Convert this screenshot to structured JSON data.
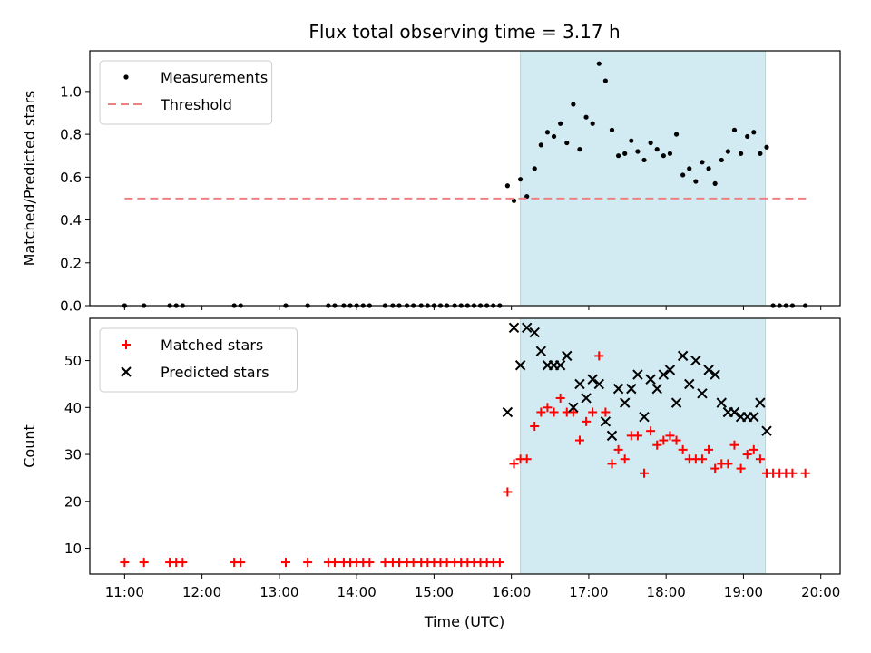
{
  "chart_data": {
    "title": "Flux total observing time = 3.17 h",
    "type": "scatter",
    "shaded_interval": {
      "x": [
        "16:07",
        "19:17"
      ],
      "color": "#add8e6"
    },
    "xlabel": "Time (UTC)",
    "xlim": [
      "10:33",
      "20:15"
    ],
    "xticks": [
      "11:00",
      "12:00",
      "13:00",
      "14:00",
      "15:00",
      "16:00",
      "17:00",
      "18:00",
      "19:00",
      "20:00"
    ],
    "panels": [
      {
        "ylabel": "Matched/Predicted stars",
        "ylim": [
          0,
          1.19
        ],
        "yticks": [
          "0.0",
          "0.2",
          "0.4",
          "0.6",
          "0.8",
          "1.0"
        ],
        "legend_position": "upper-left",
        "series": [
          {
            "name": "Measurements",
            "type": "scatter",
            "marker": "dot",
            "color": "#000000",
            "points": [
              [
                "11:00",
                0
              ],
              [
                "11:15",
                0
              ],
              [
                "11:35",
                0
              ],
              [
                "11:40",
                0
              ],
              [
                "11:45",
                0
              ],
              [
                "12:25",
                0
              ],
              [
                "12:30",
                0
              ],
              [
                "13:05",
                0
              ],
              [
                "13:22",
                0
              ],
              [
                "13:38",
                0
              ],
              [
                "13:43",
                0
              ],
              [
                "13:50",
                0
              ],
              [
                "13:55",
                0
              ],
              [
                "14:00",
                0
              ],
              [
                "14:05",
                0
              ],
              [
                "14:10",
                0
              ],
              [
                "14:22",
                0
              ],
              [
                "14:28",
                0
              ],
              [
                "14:33",
                0
              ],
              [
                "14:39",
                0
              ],
              [
                "14:44",
                0
              ],
              [
                "14:50",
                0
              ],
              [
                "14:55",
                0
              ],
              [
                "15:00",
                0
              ],
              [
                "15:05",
                0
              ],
              [
                "15:10",
                0
              ],
              [
                "15:16",
                0
              ],
              [
                "15:21",
                0
              ],
              [
                "15:26",
                0
              ],
              [
                "15:31",
                0
              ],
              [
                "15:36",
                0
              ],
              [
                "15:41",
                0
              ],
              [
                "15:46",
                0
              ],
              [
                "15:51",
                0
              ],
              [
                "15:57",
                0.56
              ],
              [
                "16:02",
                0.49
              ],
              [
                "16:07",
                0.59
              ],
              [
                "16:12",
                0.51
              ],
              [
                "16:18",
                0.64
              ],
              [
                "16:23",
                0.75
              ],
              [
                "16:28",
                0.81
              ],
              [
                "16:33",
                0.79
              ],
              [
                "16:38",
                0.85
              ],
              [
                "16:43",
                0.76
              ],
              [
                "16:48",
                0.94
              ],
              [
                "16:53",
                0.73
              ],
              [
                "16:58",
                0.88
              ],
              [
                "17:03",
                0.85
              ],
              [
                "17:08",
                1.13
              ],
              [
                "17:13",
                1.05
              ],
              [
                "17:18",
                0.82
              ],
              [
                "17:23",
                0.7
              ],
              [
                "17:28",
                0.71
              ],
              [
                "17:33",
                0.77
              ],
              [
                "17:38",
                0.72
              ],
              [
                "17:43",
                0.68
              ],
              [
                "17:48",
                0.76
              ],
              [
                "17:53",
                0.73
              ],
              [
                "17:58",
                0.7
              ],
              [
                "18:03",
                0.71
              ],
              [
                "18:08",
                0.8
              ],
              [
                "18:13",
                0.61
              ],
              [
                "18:18",
                0.64
              ],
              [
                "18:23",
                0.58
              ],
              [
                "18:28",
                0.67
              ],
              [
                "18:33",
                0.64
              ],
              [
                "18:38",
                0.57
              ],
              [
                "18:43",
                0.68
              ],
              [
                "18:48",
                0.72
              ],
              [
                "18:53",
                0.82
              ],
              [
                "18:58",
                0.71
              ],
              [
                "19:03",
                0.79
              ],
              [
                "19:08",
                0.81
              ],
              [
                "19:13",
                0.71
              ],
              [
                "19:18",
                0.74
              ],
              [
                "19:23",
                0
              ],
              [
                "19:28",
                0
              ],
              [
                "19:33",
                0
              ],
              [
                "19:38",
                0
              ],
              [
                "19:48",
                0
              ]
            ]
          },
          {
            "name": "Threshold",
            "type": "dashed-line",
            "color": "#f08080",
            "points": [
              [
                "11:00",
                0.5
              ],
              [
                "19:50",
                0.5
              ]
            ]
          }
        ]
      },
      {
        "ylabel": "Count",
        "ylim": [
          4.5,
          59
        ],
        "yticks": [
          "10",
          "20",
          "30",
          "40",
          "50"
        ],
        "legend_position": "upper-left",
        "series": [
          {
            "name": "Matched stars",
            "type": "scatter",
            "marker": "plus",
            "color": "#ff0000",
            "points": [
              [
                "11:00",
                7
              ],
              [
                "11:15",
                7
              ],
              [
                "11:35",
                7
              ],
              [
                "11:40",
                7
              ],
              [
                "11:45",
                7
              ],
              [
                "12:25",
                7
              ],
              [
                "12:30",
                7
              ],
              [
                "13:05",
                7
              ],
              [
                "13:22",
                7
              ],
              [
                "13:38",
                7
              ],
              [
                "13:43",
                7
              ],
              [
                "13:50",
                7
              ],
              [
                "13:55",
                7
              ],
              [
                "14:00",
                7
              ],
              [
                "14:05",
                7
              ],
              [
                "14:10",
                7
              ],
              [
                "14:22",
                7
              ],
              [
                "14:28",
                7
              ],
              [
                "14:33",
                7
              ],
              [
                "14:39",
                7
              ],
              [
                "14:44",
                7
              ],
              [
                "14:50",
                7
              ],
              [
                "14:55",
                7
              ],
              [
                "15:00",
                7
              ],
              [
                "15:05",
                7
              ],
              [
                "15:10",
                7
              ],
              [
                "15:16",
                7
              ],
              [
                "15:21",
                7
              ],
              [
                "15:26",
                7
              ],
              [
                "15:31",
                7
              ],
              [
                "15:36",
                7
              ],
              [
                "15:41",
                7
              ],
              [
                "15:46",
                7
              ],
              [
                "15:51",
                7
              ],
              [
                "15:57",
                22
              ],
              [
                "16:02",
                28
              ],
              [
                "16:07",
                29
              ],
              [
                "16:12",
                29
              ],
              [
                "16:18",
                36
              ],
              [
                "16:23",
                39
              ],
              [
                "16:28",
                40
              ],
              [
                "16:33",
                39
              ],
              [
                "16:38",
                42
              ],
              [
                "16:43",
                39
              ],
              [
                "16:48",
                39
              ],
              [
                "16:53",
                33
              ],
              [
                "16:58",
                37
              ],
              [
                "17:03",
                39
              ],
              [
                "17:08",
                51
              ],
              [
                "17:13",
                39
              ],
              [
                "17:18",
                28
              ],
              [
                "17:23",
                31
              ],
              [
                "17:28",
                29
              ],
              [
                "17:33",
                34
              ],
              [
                "17:38",
                34
              ],
              [
                "17:43",
                26
              ],
              [
                "17:48",
                35
              ],
              [
                "17:53",
                32
              ],
              [
                "17:58",
                33
              ],
              [
                "18:03",
                34
              ],
              [
                "18:08",
                33
              ],
              [
                "18:13",
                31
              ],
              [
                "18:18",
                29
              ],
              [
                "18:23",
                29
              ],
              [
                "18:28",
                29
              ],
              [
                "18:33",
                31
              ],
              [
                "18:38",
                27
              ],
              [
                "18:43",
                28
              ],
              [
                "18:48",
                28
              ],
              [
                "18:53",
                32
              ],
              [
                "18:58",
                27
              ],
              [
                "19:03",
                30
              ],
              [
                "19:08",
                31
              ],
              [
                "19:13",
                29
              ],
              [
                "19:18",
                26
              ],
              [
                "19:23",
                26
              ],
              [
                "19:28",
                26
              ],
              [
                "19:33",
                26
              ],
              [
                "19:38",
                26
              ],
              [
                "19:48",
                26
              ]
            ]
          },
          {
            "name": "Predicted stars",
            "type": "scatter",
            "marker": "x",
            "color": "#000000",
            "points": [
              [
                "15:57",
                39
              ],
              [
                "16:02",
                57
              ],
              [
                "16:07",
                49
              ],
              [
                "16:12",
                57
              ],
              [
                "16:18",
                56
              ],
              [
                "16:23",
                52
              ],
              [
                "16:28",
                49
              ],
              [
                "16:33",
                49
              ],
              [
                "16:38",
                49
              ],
              [
                "16:43",
                51
              ],
              [
                "16:48",
                40
              ],
              [
                "16:53",
                45
              ],
              [
                "16:58",
                42
              ],
              [
                "17:03",
                46
              ],
              [
                "17:08",
                45
              ],
              [
                "17:13",
                37
              ],
              [
                "17:18",
                34
              ],
              [
                "17:23",
                44
              ],
              [
                "17:28",
                41
              ],
              [
                "17:33",
                44
              ],
              [
                "17:38",
                47
              ],
              [
                "17:43",
                38
              ],
              [
                "17:48",
                46
              ],
              [
                "17:53",
                44
              ],
              [
                "17:58",
                47
              ],
              [
                "18:03",
                48
              ],
              [
                "18:08",
                41
              ],
              [
                "18:13",
                51
              ],
              [
                "18:18",
                45
              ],
              [
                "18:23",
                50
              ],
              [
                "18:28",
                43
              ],
              [
                "18:33",
                48
              ],
              [
                "18:38",
                47
              ],
              [
                "18:43",
                41
              ],
              [
                "18:48",
                39
              ],
              [
                "18:53",
                39
              ],
              [
                "18:58",
                38
              ],
              [
                "19:03",
                38
              ],
              [
                "19:08",
                38
              ],
              [
                "19:13",
                41
              ],
              [
                "19:18",
                35
              ]
            ]
          }
        ]
      }
    ]
  }
}
